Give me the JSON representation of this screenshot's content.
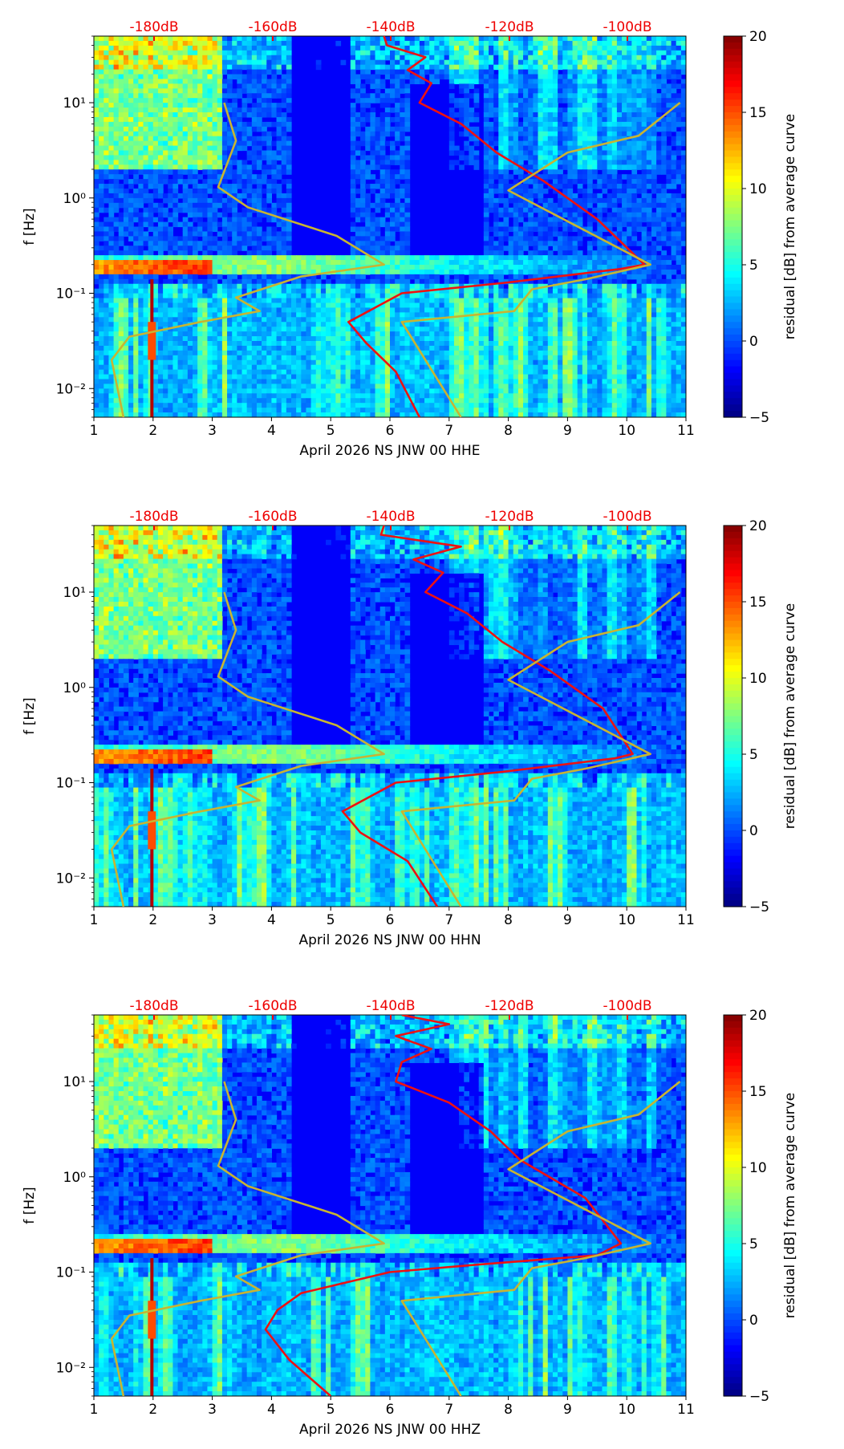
{
  "chart_data": [
    {
      "type": "heatmap",
      "title": "",
      "xlabel": "April 2026 NS JNW 00 HHE",
      "ylabel": "f [Hz]",
      "xlim": [
        1,
        11
      ],
      "ylim": [
        0.005,
        50
      ],
      "yscale": "log",
      "x_ticks": [
        "1",
        "2",
        "3",
        "4",
        "5",
        "6",
        "7",
        "8",
        "9",
        "10",
        "11"
      ],
      "y_ticks": [
        "10⁻²",
        "10⁻¹",
        "10⁰",
        "10¹"
      ],
      "top_axis_ticks": [
        "-180dB",
        "-160dB",
        "-140dB",
        "-120dB",
        "-100dB"
      ],
      "colorbar": {
        "label": "residual [dB] from average curve",
        "range": [
          -5,
          20
        ],
        "ticks": [
          "−5",
          "0",
          "5",
          "10",
          "15",
          "20"
        ]
      },
      "colormap": "jet",
      "series": [
        {
          "name": "average PSD curve",
          "color": "#ee1111",
          "points": [
            [
              5.9,
              50
            ],
            [
              5.95,
              40
            ],
            [
              6.6,
              30
            ],
            [
              6.3,
              22
            ],
            [
              6.7,
              16
            ],
            [
              6.5,
              10
            ],
            [
              7.2,
              6
            ],
            [
              7.8,
              3
            ],
            [
              8.6,
              1.5
            ],
            [
              9.5,
              0.6
            ],
            [
              10.3,
              0.2
            ],
            [
              9.9,
              0.18
            ],
            [
              8,
              0.13
            ],
            [
              6.2,
              0.1
            ],
            [
              5.3,
              0.05
            ],
            [
              5.6,
              0.03
            ],
            [
              6.1,
              0.015
            ],
            [
              6.5,
              0.005
            ]
          ]
        },
        {
          "name": "noise model envelope",
          "color": "#c8b432",
          "points": [
            [
              3.2,
              10
            ],
            [
              3.4,
              4
            ],
            [
              3.1,
              1.3
            ],
            [
              3.6,
              0.8
            ],
            [
              5.1,
              0.4
            ],
            [
              5.9,
              0.2
            ],
            [
              4.5,
              0.15
            ],
            [
              3.4,
              0.09
            ],
            [
              3.8,
              0.065
            ],
            [
              2.8,
              0.05
            ],
            [
              1.6,
              0.035
            ],
            [
              1.3,
              0.02
            ],
            [
              1.4,
              0.01
            ],
            [
              1.5,
              0.005
            ]
          ]
        },
        {
          "name": "noise model envelope (upper)",
          "color": "#c8b432",
          "points": [
            [
              10.9,
              10
            ],
            [
              10.2,
              4.5
            ],
            [
              9,
              3
            ],
            [
              8,
              1.2
            ],
            [
              10.4,
              0.2
            ],
            [
              9.3,
              0.14
            ],
            [
              8.4,
              0.11
            ],
            [
              8.1,
              0.065
            ],
            [
              6.2,
              0.05
            ],
            [
              7.2,
              0.005
            ]
          ]
        }
      ]
    },
    {
      "type": "heatmap",
      "title": "",
      "xlabel": "April 2026 NS JNW 00 HHN",
      "ylabel": "f [Hz]",
      "xlim": [
        1,
        11
      ],
      "ylim": [
        0.005,
        50
      ],
      "yscale": "log",
      "x_ticks": [
        "1",
        "2",
        "3",
        "4",
        "5",
        "6",
        "7",
        "8",
        "9",
        "10",
        "11"
      ],
      "y_ticks": [
        "10⁻²",
        "10⁻¹",
        "10⁰",
        "10¹"
      ],
      "top_axis_ticks": [
        "-180dB",
        "-160dB",
        "-140dB",
        "-120dB",
        "-100dB"
      ],
      "colorbar": {
        "label": "residual [dB] from average curve",
        "range": [
          -5,
          20
        ],
        "ticks": [
          "−5",
          "0",
          "5",
          "10",
          "15",
          "20"
        ]
      },
      "colormap": "jet",
      "series": [
        {
          "name": "average PSD curve",
          "color": "#ee1111",
          "points": [
            [
              5.9,
              50
            ],
            [
              5.85,
              40
            ],
            [
              7.2,
              30
            ],
            [
              6.4,
              22
            ],
            [
              6.9,
              16
            ],
            [
              6.6,
              10
            ],
            [
              7.3,
              6
            ],
            [
              7.9,
              3
            ],
            [
              8.7,
              1.5
            ],
            [
              9.6,
              0.6
            ],
            [
              10.1,
              0.2
            ],
            [
              9.8,
              0.18
            ],
            [
              7.9,
              0.13
            ],
            [
              6.1,
              0.1
            ],
            [
              5.2,
              0.05
            ],
            [
              5.5,
              0.03
            ],
            [
              6.3,
              0.015
            ],
            [
              6.8,
              0.005
            ]
          ]
        },
        {
          "name": "noise model envelope",
          "color": "#c8b432",
          "points": [
            [
              3.2,
              10
            ],
            [
              3.4,
              4
            ],
            [
              3.1,
              1.3
            ],
            [
              3.6,
              0.8
            ],
            [
              5.1,
              0.4
            ],
            [
              5.9,
              0.2
            ],
            [
              4.5,
              0.15
            ],
            [
              3.4,
              0.09
            ],
            [
              3.8,
              0.065
            ],
            [
              2.8,
              0.05
            ],
            [
              1.6,
              0.035
            ],
            [
              1.3,
              0.02
            ],
            [
              1.4,
              0.01
            ],
            [
              1.5,
              0.005
            ]
          ]
        },
        {
          "name": "noise model envelope (upper)",
          "color": "#c8b432",
          "points": [
            [
              10.9,
              10
            ],
            [
              10.2,
              4.5
            ],
            [
              9,
              3
            ],
            [
              8,
              1.2
            ],
            [
              10.4,
              0.2
            ],
            [
              9.3,
              0.14
            ],
            [
              8.4,
              0.11
            ],
            [
              8.1,
              0.065
            ],
            [
              6.2,
              0.05
            ],
            [
              7.2,
              0.005
            ]
          ]
        }
      ]
    },
    {
      "type": "heatmap",
      "title": "",
      "xlabel": "April 2026 NS JNW 00 HHZ",
      "ylabel": "f [Hz]",
      "xlim": [
        1,
        11
      ],
      "ylim": [
        0.005,
        50
      ],
      "yscale": "log",
      "x_ticks": [
        "1",
        "2",
        "3",
        "4",
        "5",
        "6",
        "7",
        "8",
        "9",
        "10",
        "11"
      ],
      "y_ticks": [
        "10⁻²",
        "10⁻¹",
        "10⁰",
        "10¹"
      ],
      "top_axis_ticks": [
        "-180dB",
        "-160dB",
        "-140dB",
        "-120dB",
        "-100dB"
      ],
      "colorbar": {
        "label": "residual [dB] from average curve",
        "range": [
          -5,
          20
        ],
        "ticks": [
          "−5",
          "0",
          "5",
          "10",
          "15",
          "20"
        ]
      },
      "colormap": "jet",
      "series": [
        {
          "name": "average PSD curve",
          "color": "#ee1111",
          "points": [
            [
              6.2,
              50
            ],
            [
              7,
              40
            ],
            [
              6.1,
              30
            ],
            [
              6.7,
              22
            ],
            [
              6.2,
              16
            ],
            [
              6.1,
              10
            ],
            [
              7,
              6
            ],
            [
              7.7,
              3
            ],
            [
              8.2,
              1.5
            ],
            [
              9.3,
              0.6
            ],
            [
              9.9,
              0.2
            ],
            [
              9.5,
              0.15
            ],
            [
              7.5,
              0.12
            ],
            [
              6,
              0.1
            ],
            [
              4.5,
              0.06
            ],
            [
              4.1,
              0.04
            ],
            [
              3.9,
              0.025
            ],
            [
              4.3,
              0.012
            ],
            [
              5,
              0.005
            ]
          ]
        },
        {
          "name": "noise model envelope",
          "color": "#c8b432",
          "points": [
            [
              3.2,
              10
            ],
            [
              3.4,
              4
            ],
            [
              3.1,
              1.3
            ],
            [
              3.6,
              0.8
            ],
            [
              5.1,
              0.4
            ],
            [
              5.9,
              0.2
            ],
            [
              4.5,
              0.15
            ],
            [
              3.4,
              0.09
            ],
            [
              3.8,
              0.065
            ],
            [
              2.8,
              0.05
            ],
            [
              1.6,
              0.035
            ],
            [
              1.3,
              0.02
            ],
            [
              1.4,
              0.01
            ],
            [
              1.5,
              0.005
            ]
          ]
        },
        {
          "name": "noise model envelope (upper)",
          "color": "#c8b432",
          "points": [
            [
              10.9,
              10
            ],
            [
              10.2,
              4.5
            ],
            [
              9,
              3
            ],
            [
              8,
              1.2
            ],
            [
              10.4,
              0.2
            ],
            [
              9.3,
              0.14
            ],
            [
              8.4,
              0.11
            ],
            [
              8.1,
              0.065
            ],
            [
              6.2,
              0.05
            ],
            [
              7.2,
              0.005
            ]
          ]
        }
      ]
    }
  ]
}
